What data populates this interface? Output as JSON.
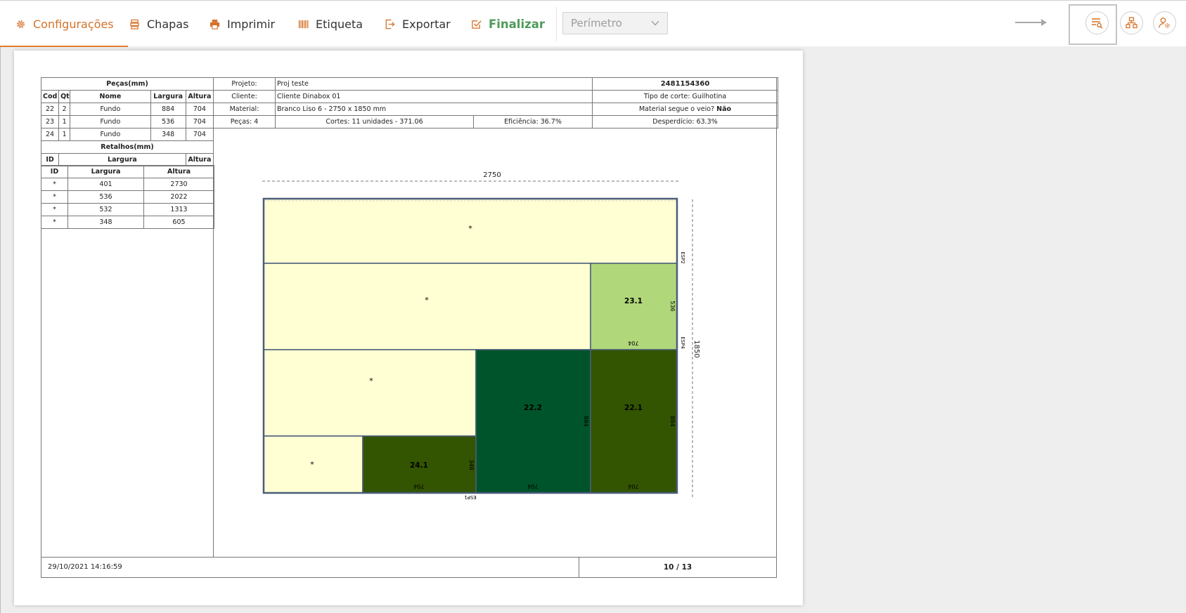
{
  "nav": {
    "items": [
      {
        "label": "Configurações",
        "icon": "gear-icon"
      },
      {
        "label": "Chapas",
        "icon": "sheets-icon"
      },
      {
        "label": "Imprimir",
        "icon": "printer-icon"
      },
      {
        "label": "Etiqueta",
        "icon": "barcode-icon"
      },
      {
        "label": "Exportar",
        "icon": "export-icon"
      },
      {
        "label": "Finalizar",
        "icon": "check-square-icon"
      }
    ],
    "select_value": "Perímetro",
    "accent_color": "#d4722a",
    "final_color": "#4f9a5b",
    "right_icons": [
      "list-search-icon",
      "hierarchy-icon",
      "user-settings-icon"
    ]
  },
  "pecas_table": {
    "title": "Peças(mm)",
    "headers": [
      "Cod",
      "Qt",
      "Nome",
      "Largura",
      "Altura"
    ],
    "rows": [
      [
        "22",
        "2",
        "Fundo",
        "884",
        "704"
      ],
      [
        "23",
        "1",
        "Fundo",
        "536",
        "704"
      ],
      [
        "24",
        "1",
        "Fundo",
        "348",
        "704"
      ]
    ]
  },
  "retalhos_table": {
    "title": "Retalhos(mm)",
    "headers": [
      "ID",
      "Largura",
      "Altura"
    ],
    "rows": [
      [
        "*",
        "401",
        "2730"
      ],
      [
        "*",
        "536",
        "2022"
      ],
      [
        "*",
        "532",
        "1313"
      ],
      [
        "*",
        "348",
        "605"
      ]
    ]
  },
  "info": {
    "projeto_label": "Projeto:",
    "projeto": "Proj teste",
    "code": "2481154360",
    "cliente_label": "Cliente:",
    "cliente": "Cliente Dinabox 01",
    "tipo_corte": "Tipo de corte: Guilhotina",
    "material_label": "Material:",
    "material": "Branco Liso 6 - 2750 x 1850 mm",
    "veio_label": "Material segue o veio?",
    "veio_value": "Não",
    "pecas": "Peças: 4",
    "cortes": "Cortes: 11 unidades - 371.06",
    "eficiencia": "Eficiência: 36.7%",
    "desperdicio": "Desperdício: 63.3%"
  },
  "layout": {
    "width_label": "2750",
    "height_label": "1850",
    "colors": {
      "scrap": "#ffffd3",
      "light_green": "#b0d77a",
      "dark_green": "#00542b",
      "olive": "#335400",
      "border": "#4a5d7a"
    },
    "pieces": [
      {
        "label": "*",
        "kind": "scrap"
      },
      {
        "label": "*",
        "kind": "scrap"
      },
      {
        "label": "23.1",
        "kind": "light_green",
        "w": "704",
        "h": "536"
      },
      {
        "label": "*",
        "kind": "scrap"
      },
      {
        "label": "22.2",
        "kind": "dark_green",
        "w": "704",
        "h": "884"
      },
      {
        "label": "22.1",
        "kind": "olive",
        "w": "704",
        "h": "884"
      },
      {
        "label": "*",
        "kind": "scrap"
      },
      {
        "label": "24.1",
        "kind": "olive",
        "w": "704",
        "h": "348"
      }
    ],
    "side_labels": {
      "right_top": "ESP2",
      "right_mid": "ESP4",
      "bottom": "ESP1"
    }
  },
  "footer": {
    "date": "29/10/2021 14:16:59",
    "page": "10 / 13"
  }
}
